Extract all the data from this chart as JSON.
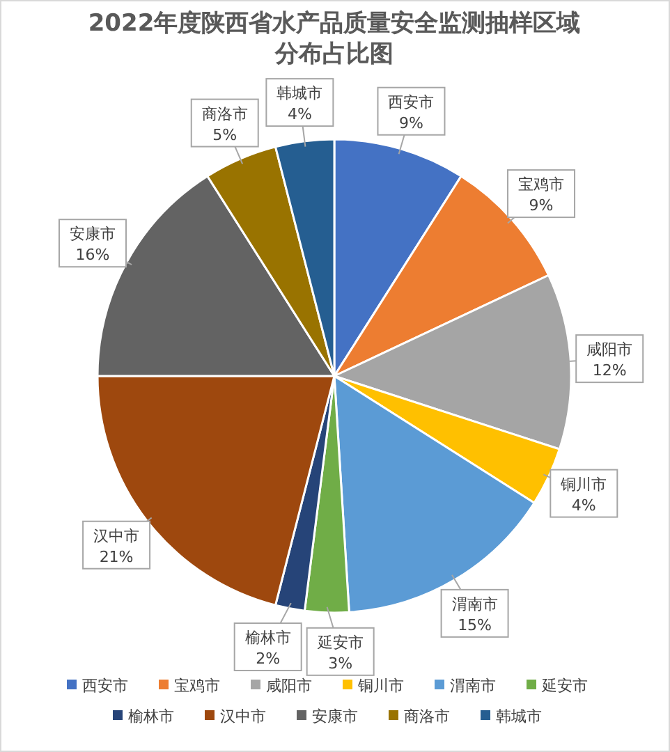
{
  "chart_data": {
    "type": "pie",
    "title": "2022年度陕西省水产品质量安全监测抽样区域分布占比图",
    "categories": [
      "西安市",
      "宝鸡市",
      "咸阳市",
      "铜川市",
      "渭南市",
      "延安市",
      "榆林市",
      "汉中市",
      "安康市",
      "商洛市",
      "韩城市"
    ],
    "values": [
      9,
      9,
      12,
      4,
      15,
      3,
      2,
      21,
      16,
      5,
      4
    ],
    "value_labels": [
      "9%",
      "9%",
      "12%",
      "4%",
      "15%",
      "3%",
      "2%",
      "21%",
      "16%",
      "5%",
      "4%"
    ],
    "colors": [
      "#4472c4",
      "#ed7d31",
      "#a5a5a5",
      "#ffc000",
      "#5b9bd5",
      "#70ad47",
      "#264478",
      "#9e480e",
      "#636363",
      "#997300",
      "#255e91"
    ],
    "legend": "bottom"
  }
}
